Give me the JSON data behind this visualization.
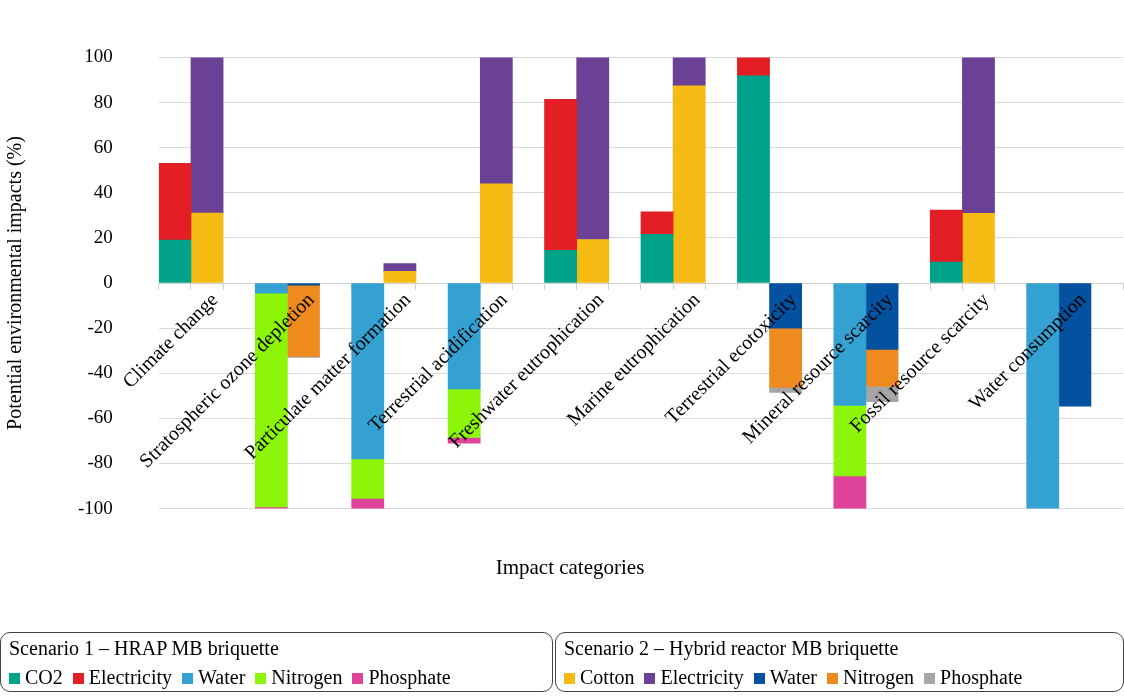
{
  "chart_data": {
    "type": "bar",
    "stacked": true,
    "xlabel": "Impact categories",
    "ylabel": "Potential environmental impacts (%)",
    "categories": [
      null,
      "Climate change",
      null,
      null,
      "Stratospheric ozone depletion",
      null,
      null,
      "Particulate matter formation",
      null,
      null,
      "Terrestrial acidification",
      null,
      null,
      "Freshwater eutrophication",
      null,
      null,
      "Marine eutrophication",
      null,
      null,
      "Terrestrial ecotoxicity",
      null,
      null,
      "Mineral resource scarcity",
      null,
      null,
      "Fossil resource scarcity",
      null,
      null,
      "Water consumption",
      null
    ],
    "series": [
      {
        "name": "CO2",
        "color": "#00a38a",
        "values": [
          19,
          null,
          null,
          null,
          null,
          null,
          null,
          null,
          null,
          null,
          null,
          null,
          14.5,
          null,
          null,
          21.6,
          null,
          null,
          91.8,
          null,
          null,
          null,
          null,
          null,
          9.3,
          null,
          null,
          null,
          null,
          null
        ]
      },
      {
        "name": "Electricity",
        "color": "#e31e24",
        "values": [
          34,
          null,
          null,
          null,
          null,
          null,
          null,
          null,
          null,
          null,
          null,
          null,
          66.9,
          null,
          null,
          10,
          null,
          null,
          8.2,
          null,
          null,
          null,
          null,
          null,
          23,
          null,
          null,
          null,
          null,
          null
        ]
      },
      {
        "name": "Water",
        "color": "#33a1d1",
        "values": [
          null,
          null,
          null,
          -4.5,
          null,
          null,
          -78,
          null,
          null,
          -47,
          null,
          null,
          null,
          null,
          null,
          null,
          null,
          null,
          null,
          null,
          null,
          -54.3,
          null,
          null,
          null,
          null,
          null,
          -100,
          null,
          null
        ]
      },
      {
        "name": "Nitrogen",
        "color": "#8cf50a",
        "values": [
          null,
          null,
          null,
          -94.7,
          null,
          null,
          -17.5,
          null,
          null,
          -21.5,
          null,
          null,
          null,
          null,
          null,
          null,
          null,
          null,
          null,
          null,
          null,
          -31.2,
          null,
          null,
          null,
          null,
          null,
          null,
          null,
          null
        ]
      },
      {
        "name": "Phosphate",
        "color": "#e0449a",
        "values": [
          null,
          null,
          null,
          -0.8,
          null,
          null,
          -4.5,
          null,
          null,
          -2.5,
          null,
          null,
          null,
          null,
          null,
          null,
          null,
          null,
          null,
          null,
          null,
          -14.5,
          null,
          null,
          null,
          null,
          null,
          null,
          null,
          null
        ]
      },
      {
        "name": "Cotton",
        "color": "#f6bb12",
        "values": [
          null,
          31,
          null,
          null,
          null,
          null,
          null,
          5.2,
          null,
          null,
          44,
          null,
          null,
          19.3,
          null,
          null,
          87.4,
          null,
          null,
          null,
          null,
          null,
          null,
          null,
          null,
          30.9,
          null,
          null,
          null,
          null
        ]
      },
      {
        "name": "Electricity",
        "color": "#6a4195",
        "values": [
          null,
          69,
          null,
          null,
          null,
          null,
          null,
          3.4,
          null,
          null,
          56,
          null,
          null,
          80.7,
          null,
          null,
          12.6,
          null,
          null,
          null,
          null,
          null,
          null,
          null,
          null,
          69.1,
          null,
          null,
          null,
          null
        ]
      },
      {
        "name": "Water",
        "color": "#03519f",
        "values": [
          null,
          null,
          null,
          null,
          -1,
          null,
          null,
          null,
          null,
          null,
          null,
          null,
          null,
          null,
          null,
          null,
          null,
          null,
          null,
          -20,
          null,
          null,
          -29.4,
          null,
          null,
          null,
          null,
          null,
          -54.6,
          null
        ]
      },
      {
        "name": "Nitrogen",
        "color": "#ee8a1e",
        "values": [
          null,
          null,
          null,
          null,
          -31.5,
          null,
          null,
          null,
          null,
          null,
          null,
          null,
          null,
          null,
          null,
          null,
          null,
          null,
          null,
          -26.3,
          null,
          null,
          -16.3,
          null,
          null,
          null,
          null,
          null,
          null,
          null
        ]
      },
      {
        "name": "Phosphate",
        "color": "#a6a6a6",
        "values": [
          null,
          null,
          null,
          null,
          -0.5,
          null,
          null,
          null,
          null,
          null,
          null,
          null,
          null,
          null,
          null,
          null,
          null,
          null,
          null,
          -2.2,
          null,
          null,
          -6.9,
          null,
          null,
          null,
          null,
          null,
          null,
          null
        ]
      }
    ],
    "ylim": [
      -100,
      100
    ],
    "yticks": [
      -100,
      -80,
      -60,
      -40,
      -20,
      0,
      20,
      40,
      60,
      80,
      100
    ],
    "grid": "y",
    "legend": "bottom",
    "annotations": [
      "Scenario 1 – HRAP MB briquette",
      "Scenario 2 – Hybrid reactor MB briquette"
    ]
  }
}
